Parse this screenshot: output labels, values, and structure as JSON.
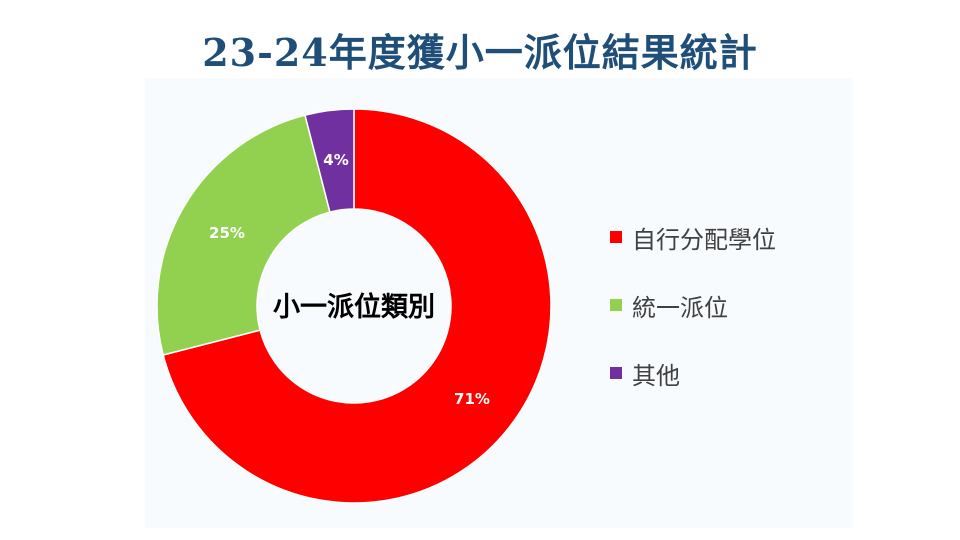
{
  "title": "23-24年度獲小一派位結果統計",
  "chart_data": {
    "type": "pie",
    "hole_label": "小一派位類別",
    "legend_position": "right",
    "categories": [
      "自行分配學位",
      "統一派位",
      "其他"
    ],
    "values": [
      71,
      25,
      4
    ],
    "data_labels": [
      "71%",
      "25%",
      "4%"
    ],
    "colors": [
      "#ff0000",
      "#92d050",
      "#7030a0"
    ]
  }
}
